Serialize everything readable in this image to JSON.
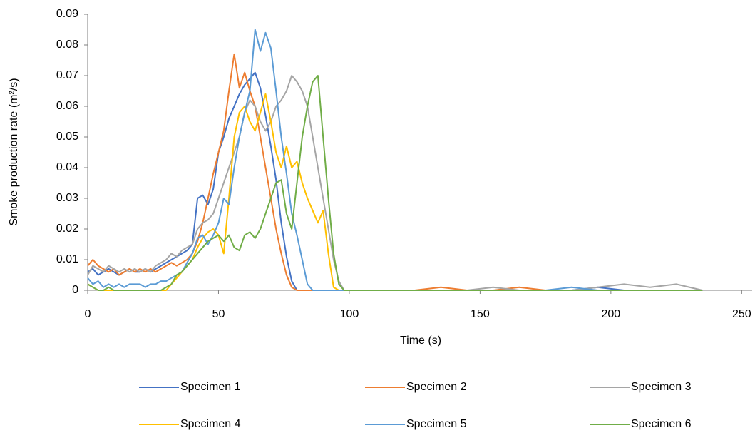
{
  "chart_data": {
    "type": "line",
    "x_label": "Time (s)",
    "y_label": "Smoke production rate  (m²/s)",
    "x": [
      0,
      2,
      4,
      6,
      8,
      10,
      12,
      14,
      16,
      18,
      20,
      22,
      24,
      26,
      28,
      30,
      32,
      34,
      36,
      38,
      40,
      42,
      44,
      46,
      48,
      50,
      52,
      54,
      56,
      58,
      60,
      62,
      64,
      66,
      68,
      70,
      72,
      74,
      76,
      78,
      80,
      82,
      84,
      86,
      88,
      90,
      92,
      94,
      96,
      98,
      100,
      105,
      115,
      125,
      135,
      145,
      155,
      165,
      175,
      185,
      195,
      205,
      215,
      225,
      235
    ],
    "series": [
      {
        "name": "Specimen 1",
        "color": "#4472c4",
        "values": [
          0.006,
          0.007,
          0.005,
          0.006,
          0.007,
          0.006,
          0.005,
          0.006,
          0.007,
          0.006,
          0.006,
          0.007,
          0.006,
          0.007,
          0.008,
          0.009,
          0.01,
          0.011,
          0.012,
          0.013,
          0.015,
          0.03,
          0.031,
          0.028,
          0.033,
          0.045,
          0.05,
          0.056,
          0.06,
          0.064,
          0.067,
          0.069,
          0.071,
          0.066,
          0.057,
          0.047,
          0.036,
          0.022,
          0.011,
          0.003,
          0,
          0,
          0,
          0,
          0,
          0,
          0,
          0,
          0,
          0,
          0,
          0,
          0,
          0,
          0,
          0,
          0,
          0,
          0,
          0,
          0.001,
          0,
          0,
          0,
          0
        ]
      },
      {
        "name": "Specimen 2",
        "color": "#ed7d31",
        "values": [
          0.008,
          0.01,
          0.008,
          0.007,
          0.006,
          0.007,
          0.005,
          0.006,
          0.007,
          0.006,
          0.007,
          0.006,
          0.007,
          0.006,
          0.007,
          0.008,
          0.009,
          0.008,
          0.009,
          0.01,
          0.012,
          0.016,
          0.022,
          0.03,
          0.038,
          0.045,
          0.052,
          0.065,
          0.077,
          0.066,
          0.071,
          0.065,
          0.06,
          0.05,
          0.04,
          0.03,
          0.02,
          0.012,
          0.005,
          0.001,
          0,
          0,
          0,
          0,
          0,
          0,
          0,
          0,
          0,
          0,
          0,
          0,
          0,
          0,
          0.001,
          0,
          0,
          0.001,
          0,
          0,
          0,
          0,
          0,
          0,
          0
        ]
      },
      {
        "name": "Specimen 3",
        "color": "#a5a5a5",
        "values": [
          0.005,
          0.008,
          0.007,
          0.006,
          0.008,
          0.007,
          0.006,
          0.007,
          0.006,
          0.007,
          0.006,
          0.007,
          0.006,
          0.008,
          0.009,
          0.01,
          0.012,
          0.011,
          0.013,
          0.014,
          0.015,
          0.02,
          0.022,
          0.023,
          0.025,
          0.03,
          0.035,
          0.04,
          0.045,
          0.05,
          0.058,
          0.062,
          0.06,
          0.055,
          0.052,
          0.055,
          0.06,
          0.062,
          0.065,
          0.07,
          0.068,
          0.065,
          0.06,
          0.05,
          0.04,
          0.03,
          0.02,
          0.01,
          0.003,
          0,
          0,
          0,
          0,
          0,
          0,
          0,
          0.001,
          0,
          0,
          0,
          0.001,
          0.002,
          0.001,
          0.002,
          0
        ]
      },
      {
        "name": "Specimen 4",
        "color": "#ffc000",
        "values": [
          0.002,
          0.001,
          0,
          0,
          0,
          0,
          0,
          0,
          0,
          0,
          0,
          0,
          0,
          0,
          0,
          0,
          0.002,
          0.004,
          0.006,
          0.008,
          0.01,
          0.014,
          0.017,
          0.019,
          0.02,
          0.018,
          0.012,
          0.03,
          0.05,
          0.058,
          0.06,
          0.055,
          0.052,
          0.058,
          0.064,
          0.055,
          0.045,
          0.04,
          0.047,
          0.04,
          0.042,
          0.035,
          0.03,
          0.026,
          0.022,
          0.026,
          0.012,
          0.001,
          0,
          0,
          0,
          0,
          0,
          0,
          0,
          0,
          0,
          0,
          0,
          0,
          0,
          0,
          0,
          0,
          0
        ]
      },
      {
        "name": "Specimen 5",
        "color": "#5b9bd5",
        "values": [
          0.004,
          0.002,
          0.003,
          0.001,
          0.002,
          0.001,
          0.002,
          0.001,
          0.002,
          0.002,
          0.002,
          0.001,
          0.002,
          0.002,
          0.003,
          0.003,
          0.004,
          0.005,
          0.006,
          0.009,
          0.012,
          0.017,
          0.018,
          0.015,
          0.018,
          0.022,
          0.03,
          0.028,
          0.04,
          0.05,
          0.058,
          0.065,
          0.085,
          0.078,
          0.084,
          0.079,
          0.065,
          0.05,
          0.038,
          0.025,
          0.018,
          0.01,
          0.002,
          0,
          0,
          0,
          0,
          0,
          0,
          0,
          0,
          0,
          0,
          0,
          0,
          0,
          0,
          0,
          0,
          0.001,
          0,
          0,
          0,
          0,
          0
        ]
      },
      {
        "name": "Specimen 6",
        "color": "#70ad47",
        "values": [
          0.002,
          0.001,
          0,
          0,
          0.001,
          0,
          0,
          0,
          0,
          0,
          0,
          0,
          0,
          0,
          0,
          0.001,
          0.002,
          0.005,
          0.006,
          0.008,
          0.01,
          0.012,
          0.014,
          0.016,
          0.017,
          0.018,
          0.016,
          0.018,
          0.014,
          0.013,
          0.018,
          0.019,
          0.017,
          0.02,
          0.025,
          0.03,
          0.035,
          0.036,
          0.025,
          0.02,
          0.035,
          0.05,
          0.06,
          0.068,
          0.07,
          0.05,
          0.03,
          0.012,
          0.002,
          0,
          0,
          0,
          0,
          0,
          0,
          0,
          0,
          0,
          0,
          0,
          0,
          0,
          0,
          0,
          0
        ]
      }
    ],
    "xlim": [
      0,
      254
    ],
    "xticks": [
      0,
      50,
      100,
      150,
      200,
      250
    ],
    "ylim": [
      0,
      0.09
    ],
    "yticks": [
      0,
      0.01,
      0.02,
      0.03,
      0.04,
      0.05,
      0.06,
      0.07,
      0.08,
      0.09
    ],
    "grid": false,
    "legend": "bottom"
  }
}
